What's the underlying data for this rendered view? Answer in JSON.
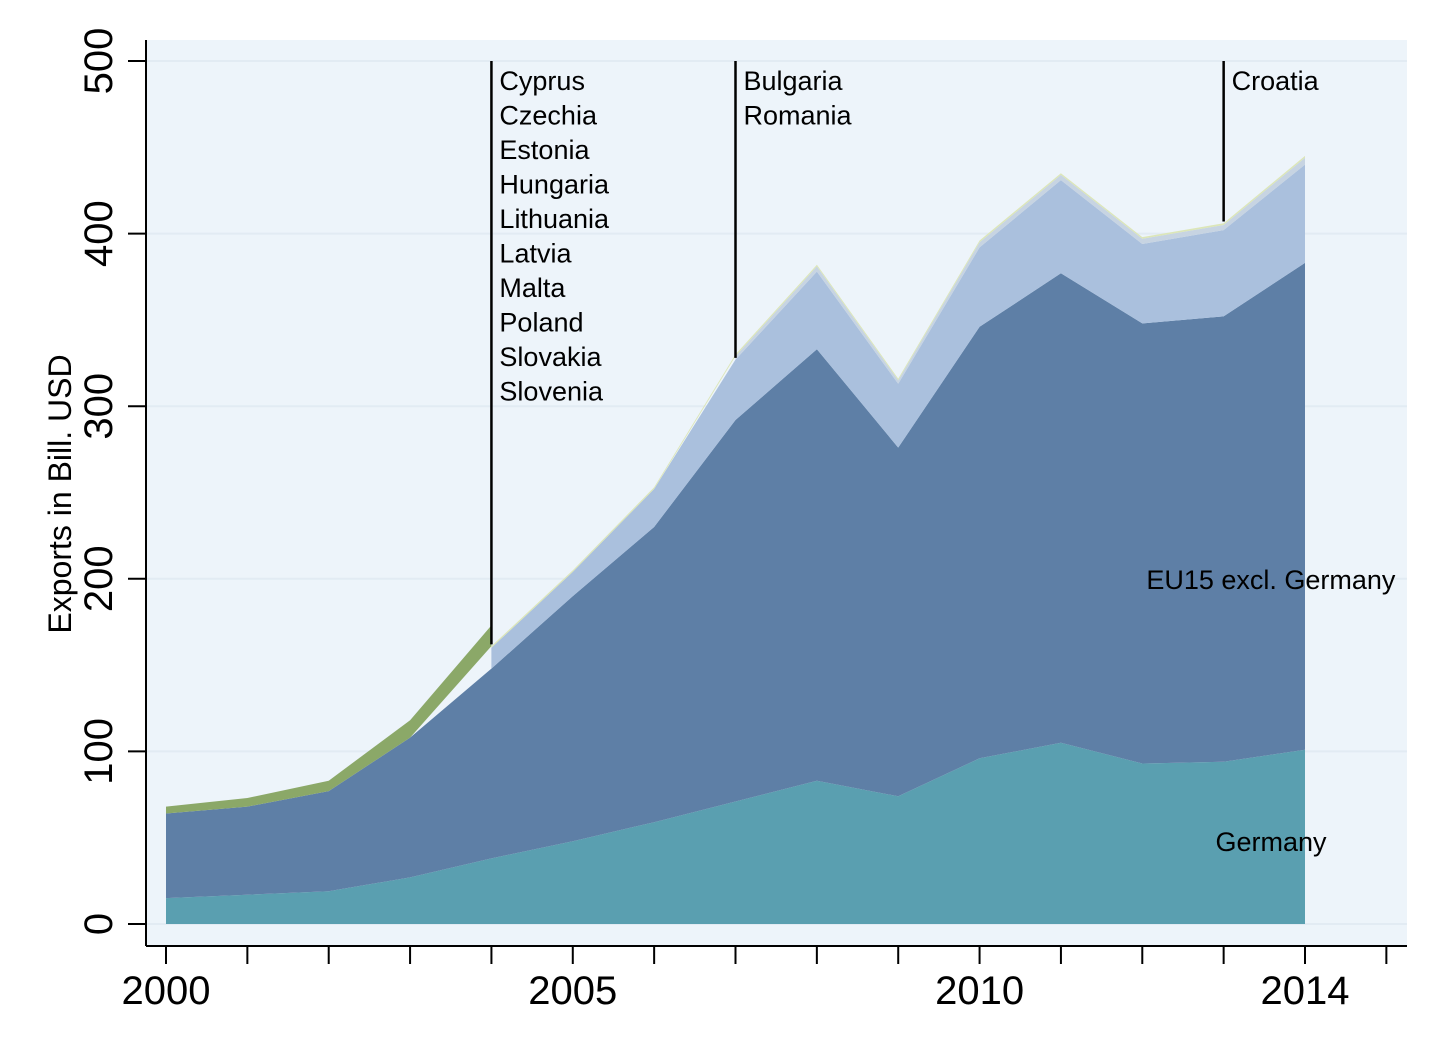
{
  "chart_data": {
    "type": "area",
    "stacked": true,
    "title": "",
    "xlabel": "",
    "ylabel": "Exports in Bill. USD",
    "xlim": [
      1999.95,
      2015
    ],
    "ylim": [
      0,
      500
    ],
    "x_ticks_labeled": [
      2000,
      2005,
      2010,
      2014
    ],
    "x_ticks_minor": [
      2000,
      2001,
      2002,
      2003,
      2004,
      2005,
      2006,
      2007,
      2008,
      2009,
      2010,
      2011,
      2012,
      2013,
      2014,
      2015
    ],
    "y_ticks": [
      0,
      100,
      200,
      300,
      400,
      500
    ],
    "grid": true,
    "legend": "none",
    "x": [
      2000,
      2001,
      2002,
      2003,
      2004,
      2005,
      2006,
      2007,
      2008,
      2009,
      2010,
      2011,
      2012,
      2013,
      2014
    ],
    "series": [
      {
        "name": "Germany",
        "color": "#5a9fb0",
        "values": [
          15,
          17,
          19,
          27,
          38,
          48,
          59,
          71,
          83,
          74,
          96,
          105,
          93,
          94,
          101
        ]
      },
      {
        "name": "EU15 excl. Germany",
        "color": "#5e7fa6",
        "values": [
          49,
          51,
          58,
          81,
          110,
          142,
          171,
          221,
          250,
          202,
          250,
          272,
          255,
          258,
          282
        ]
      },
      {
        "name": "",
        "color": "#aac0dd",
        "values": [
          null,
          null,
          null,
          null,
          12,
          14,
          22,
          35,
          45,
          37,
          46,
          54,
          46,
          50,
          57
        ]
      },
      {
        "name": "",
        "color": "#c7d4e2",
        "values": [
          null,
          null,
          null,
          null,
          null,
          null,
          null,
          2,
          3,
          2,
          3,
          3,
          3,
          3,
          4
        ]
      },
      {
        "name": "",
        "color": "#dce6b8",
        "values": [
          null,
          null,
          null,
          null,
          1,
          1,
          1,
          1,
          1,
          1,
          1,
          1,
          1,
          1,
          1
        ]
      },
      {
        "name": "",
        "color": "#8ba868",
        "values": [
          4,
          5,
          6,
          10,
          12,
          null,
          null,
          null,
          null,
          null,
          null,
          null,
          null,
          null,
          null
        ]
      }
    ],
    "area_labels": [
      {
        "text": "EU15 excl. Germany",
        "x": 2012.05,
        "y": 200
      },
      {
        "text": "Germany",
        "x": 2012.9,
        "y": 48
      }
    ],
    "annotations": [
      {
        "x": 2004,
        "y_top": 500,
        "y_bottom": 162,
        "labels": [
          "Cyprus",
          "Czechia",
          "Estonia",
          "Hungaria",
          "Lithuania",
          "Latvia",
          "Malta",
          "Poland",
          "Slovakia",
          "Slovenia"
        ]
      },
      {
        "x": 2007,
        "y_top": 500,
        "y_bottom": 328,
        "labels": [
          "Bulgaria",
          "Romania"
        ]
      },
      {
        "x": 2013,
        "y_top": 500,
        "y_bottom": 407,
        "labels": [
          "Croatia"
        ]
      }
    ],
    "colors": {
      "plot_background": "#edf4fa",
      "gridline": "#e2ebf3",
      "axis": "#000000"
    }
  }
}
